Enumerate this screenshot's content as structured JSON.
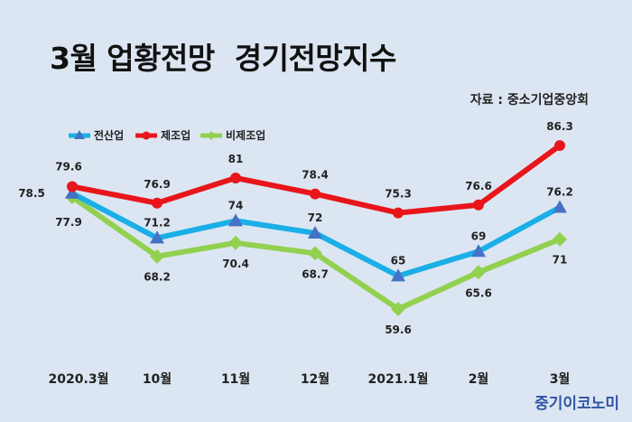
{
  "title": "3월 업황전망  경기전망지수",
  "source": "자료 : 중소기업중앙회",
  "brand": "중기이코노미",
  "chart_data": {
    "type": "line",
    "categories": [
      "2020.3월",
      "10월",
      "11월",
      "12월",
      "2021.1월",
      "2월",
      "3월"
    ],
    "series": [
      {
        "name": "전산업",
        "values": [
          78.5,
          71.2,
          74,
          72,
          65,
          69,
          76.2
        ],
        "color": "#1aafe6",
        "marker": "triangle",
        "marker_color": "#4472c4"
      },
      {
        "name": "제조업",
        "values": [
          79.6,
          76.9,
          81,
          78.4,
          75.3,
          76.6,
          86.3
        ],
        "color": "#e8161b",
        "marker": "circle",
        "marker_color": "#e8161b"
      },
      {
        "name": "비제조업",
        "values": [
          77.9,
          68.2,
          70.4,
          68.7,
          59.6,
          65.6,
          71
        ],
        "color": "#92d050",
        "marker": "diamond",
        "marker_color": "#92d050"
      }
    ],
    "ylim": [
      50,
      90
    ],
    "grid": false,
    "legend": "top-left"
  }
}
